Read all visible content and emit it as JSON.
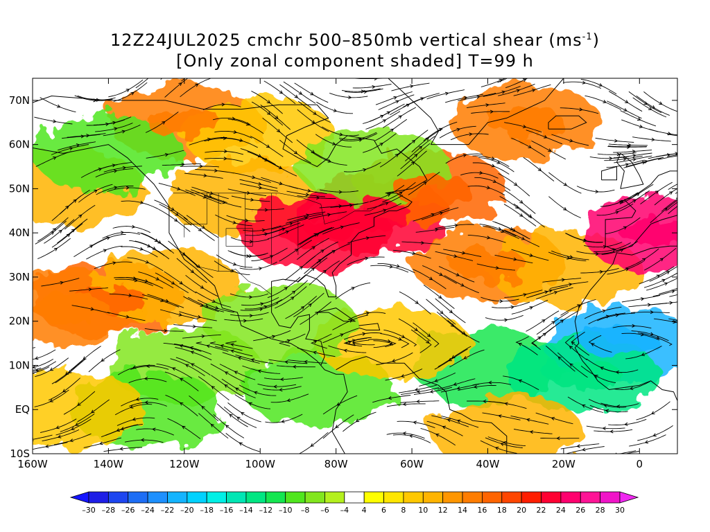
{
  "title": {
    "line1_prefix": "12Z24JUL2025 cmchr 500–850mb vertical shear (ms",
    "line1_sup": "-1",
    "line1_suffix": ")",
    "line2": "[Only zonal component shaded] T=99 h"
  },
  "map": {
    "lon_range": [
      -160,
      10
    ],
    "lat_range": [
      -10,
      75
    ],
    "lat_ticks": [
      {
        "value": 70,
        "label": "70N"
      },
      {
        "value": 60,
        "label": "60N"
      },
      {
        "value": 50,
        "label": "50N"
      },
      {
        "value": 40,
        "label": "40N"
      },
      {
        "value": 30,
        "label": "30N"
      },
      {
        "value": 20,
        "label": "20N"
      },
      {
        "value": 10,
        "label": "10N"
      },
      {
        "value": 0,
        "label": "EQ"
      },
      {
        "value": -10,
        "label": "10S"
      }
    ],
    "lon_ticks": [
      {
        "value": -160,
        "label": "160W"
      },
      {
        "value": -140,
        "label": "140W"
      },
      {
        "value": -120,
        "label": "120W"
      },
      {
        "value": -100,
        "label": "100W"
      },
      {
        "value": -80,
        "label": "80W"
      },
      {
        "value": -60,
        "label": "60W"
      },
      {
        "value": -40,
        "label": "40W"
      },
      {
        "value": -20,
        "label": "20W"
      },
      {
        "value": 0,
        "label": "0"
      }
    ],
    "shading": [
      {
        "lon": -140,
        "lat": 25,
        "value": 16
      },
      {
        "lon": -150,
        "lat": 23,
        "value": 14
      },
      {
        "lon": -125,
        "lat": 28,
        "value": 10
      },
      {
        "lon": -150,
        "lat": 50,
        "value": 10
      },
      {
        "lon": -120,
        "lat": 65,
        "value": 14
      },
      {
        "lon": -100,
        "lat": 62,
        "value": 8
      },
      {
        "lon": -105,
        "lat": 48,
        "value": 10
      },
      {
        "lon": -85,
        "lat": 40,
        "value": 22
      },
      {
        "lon": -70,
        "lat": 44,
        "value": 22
      },
      {
        "lon": -55,
        "lat": 50,
        "value": 16
      },
      {
        "lon": -30,
        "lat": 65,
        "value": 14
      },
      {
        "lon": -40,
        "lat": 33,
        "value": 14
      },
      {
        "lon": -20,
        "lat": 32,
        "value": 10
      },
      {
        "lon": 5,
        "lat": 40,
        "value": 24
      },
      {
        "lon": -120,
        "lat": 10,
        "value": -8
      },
      {
        "lon": -85,
        "lat": 5,
        "value": -10
      },
      {
        "lon": -40,
        "lat": 10,
        "value": -12
      },
      {
        "lon": -5,
        "lat": 15,
        "value": -22
      },
      {
        "lon": -15,
        "lat": 8,
        "value": -14
      },
      {
        "lon": -130,
        "lat": 0,
        "value": -10
      },
      {
        "lon": -70,
        "lat": 55,
        "value": -8
      },
      {
        "lon": -140,
        "lat": 58,
        "value": -10
      },
      {
        "lon": -150,
        "lat": 0,
        "value": 8
      },
      {
        "lon": -35,
        "lat": -5,
        "value": 10
      },
      {
        "lon": -65,
        "lat": 15,
        "value": 8
      },
      {
        "lon": -95,
        "lat": 20,
        "value": -8
      }
    ]
  },
  "colorbar": {
    "labels": [
      "-30",
      "-28",
      "-26",
      "-24",
      "-22",
      "-20",
      "-18",
      "-16",
      "-14",
      "-12",
      "-10",
      "-8",
      "-6",
      "-4",
      "4",
      "6",
      "8",
      "10",
      "12",
      "14",
      "16",
      "18",
      "20",
      "22",
      "24",
      "26",
      "28",
      "30"
    ],
    "colors": [
      "#1e1ee6",
      "#1e46f0",
      "#1e6ef5",
      "#1e90ff",
      "#14b4ff",
      "#00d2ff",
      "#00f0e6",
      "#00e6b4",
      "#00e682",
      "#14e650",
      "#50e61e",
      "#82e61e",
      "#b4f01e",
      "#ffffff",
      "#ffff00",
      "#ffe600",
      "#ffc800",
      "#ffb400",
      "#ff9600",
      "#ff7d00",
      "#ff6400",
      "#ff4600",
      "#ff1e00",
      "#ff0032",
      "#ff006e",
      "#ff1496",
      "#f014c8"
    ],
    "under_color": "#1414ff",
    "over_color": "#f028f0"
  }
}
